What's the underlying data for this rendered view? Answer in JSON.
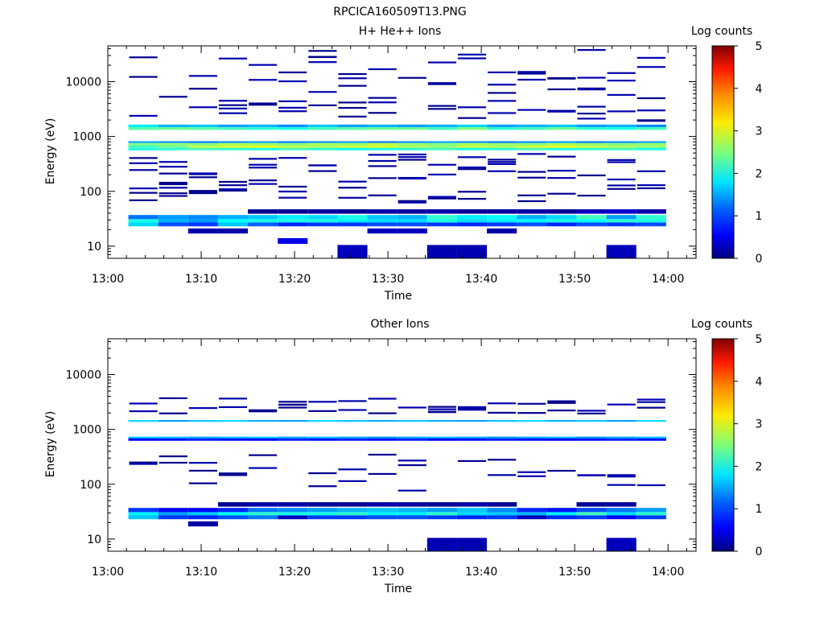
{
  "file_title": "RPCICA160509T13.PNG",
  "chart_data": [
    {
      "type": "heatmap",
      "title": "H+ He++ Ions",
      "xlabel": "Time",
      "ylabel": "Energy (eV)",
      "x_tick_labels": [
        "13:00",
        "13:10",
        "13:20",
        "13:30",
        "13:40",
        "13:50",
        "14:00"
      ],
      "x_range_minutes": [
        0,
        63
      ],
      "y_tick_labels": [
        "10",
        "100",
        "1000",
        "10000"
      ],
      "y_range": [
        6,
        45000
      ],
      "y_scale": "log",
      "colorbar_label": "Log counts",
      "colorbar_range": [
        0,
        5
      ],
      "colorbar_ticks": [
        "0",
        "1",
        "2",
        "3",
        "4",
        "5"
      ],
      "column_edges_minutes": [
        2.2,
        5.4,
        8.6,
        11.8,
        15.0,
        18.2,
        21.4,
        24.6,
        27.8,
        31.0,
        34.2,
        37.4,
        40.6,
        43.8,
        47.0,
        50.2,
        53.4,
        56.6,
        59.8
      ],
      "bands": [
        {
          "ev": [
            1320,
            1480
          ],
          "z": [
            2.3,
            2.4,
            2.3,
            2.2,
            2.1,
            2.0,
            2.2,
            2.3,
            2.4,
            2.4,
            2.2,
            2.5,
            2.1,
            2.2,
            2.4,
            2.1,
            2.0,
            2.2
          ]
        },
        {
          "ev": [
            1480,
            1650
          ],
          "z": [
            1.8,
            1.5,
            1.6,
            1.4,
            1.5,
            1.3,
            1.6,
            1.4,
            1.5,
            1.4,
            1.5,
            1.7,
            1.4,
            1.5,
            1.6,
            1.4,
            1.5,
            1.3
          ]
        },
        {
          "ev": [
            760,
            820
          ],
          "z": [
            1.4,
            1.3,
            1.2,
            1.3,
            1.4,
            1.2,
            1.3,
            1.4,
            1.2,
            1.3,
            1.4,
            1.3,
            1.2,
            1.3,
            1.4,
            1.2,
            1.3,
            1.4
          ]
        },
        {
          "ev": [
            690,
            760
          ],
          "z": [
            2.5,
            2.6,
            2.5,
            2.7,
            2.6,
            2.5,
            2.7,
            2.6,
            2.8,
            2.6,
            2.5,
            2.7,
            2.6,
            2.5,
            2.7,
            2.6,
            2.5,
            2.6
          ]
        },
        {
          "ev": [
            620,
            690
          ],
          "z": [
            2.2,
            2.4,
            2.8,
            2.9,
            3.0,
            2.8,
            2.7,
            2.9,
            2.9,
            2.7,
            2.6,
            2.8,
            2.7,
            2.9,
            3.0,
            2.8,
            2.7,
            2.6
          ]
        },
        {
          "ev": [
            560,
            620
          ],
          "z": [
            2.0,
            2.1,
            2.2,
            2.1,
            2.0,
            2.2,
            2.1,
            1.9,
            2.0,
            2.1,
            2.2,
            2.0,
            2.1,
            2.2,
            2.0,
            2.1,
            2.2,
            2.0
          ]
        },
        {
          "ev": [
            31,
            37
          ],
          "z": [
            1.2,
            1.4,
            1.3,
            1.5,
            1.6,
            1.8,
            1.7,
            2.0,
            1.6,
            1.5,
            2.1,
            1.8,
            1.9,
            1.5,
            1.7,
            2.2,
            1.4,
            2.1
          ]
        },
        {
          "ev": [
            27,
            31
          ],
          "z": [
            2.0,
            1.5,
            1.4,
            1.9,
            2.0,
            2.0,
            2.0,
            1.8,
            1.7,
            1.7,
            2.0,
            1.7,
            1.8,
            1.9,
            2.0,
            1.9,
            2.1,
            2.0
          ]
        },
        {
          "ev": [
            23,
            27
          ],
          "z": [
            1.7,
            1.0,
            0.9,
            1.6,
            1.1,
            0.8,
            0.9,
            0.9,
            1.0,
            1.0,
            0.9,
            0.8,
            0.9,
            1.0,
            0.8,
            1.0,
            0.9,
            1.0
          ]
        },
        {
          "ev": [
            39,
            47
          ],
          "z": [
            null,
            null,
            null,
            null,
            0.1,
            0.1,
            0.15,
            0.1,
            0.2,
            0.15,
            0.2,
            0.1,
            0.15,
            0.2,
            0.1,
            0.3,
            0.4,
            0.2
          ]
        },
        {
          "ev": [
            17,
            21
          ],
          "z": [
            null,
            null,
            0.2,
            0.2,
            null,
            null,
            null,
            null,
            0.3,
            0.3,
            null,
            null,
            0.2,
            null,
            null,
            null,
            null,
            null
          ]
        },
        {
          "ev": [
            11,
            14
          ],
          "z": [
            null,
            null,
            null,
            null,
            null,
            0.5,
            null,
            null,
            null,
            null,
            null,
            null,
            null,
            null,
            null,
            null,
            null,
            null
          ]
        },
        {
          "ev": [
            6,
            10.5
          ],
          "z": [
            null,
            null,
            null,
            null,
            null,
            null,
            null,
            0.3,
            null,
            null,
            0.25,
            0.25,
            null,
            null,
            null,
            null,
            0.3,
            null
          ]
        }
      ]
    },
    {
      "type": "heatmap",
      "title": "Other Ions",
      "xlabel": "Time",
      "ylabel": "Energy (eV)",
      "x_tick_labels": [
        "13:00",
        "13:10",
        "13:20",
        "13:30",
        "13:40",
        "13:50",
        "14:00"
      ],
      "x_range_minutes": [
        0,
        63
      ],
      "y_tick_labels": [
        "10",
        "100",
        "1000",
        "10000"
      ],
      "y_range": [
        6,
        45000
      ],
      "y_scale": "log",
      "colorbar_label": "Log counts",
      "colorbar_range": [
        0,
        5
      ],
      "colorbar_ticks": [
        "0",
        "1",
        "2",
        "3",
        "4",
        "5"
      ],
      "column_edges_minutes": [
        2.2,
        5.4,
        8.6,
        11.8,
        15.0,
        18.2,
        21.4,
        24.6,
        27.8,
        31.0,
        34.2,
        37.4,
        40.6,
        43.8,
        47.0,
        50.2,
        53.4,
        56.6,
        59.8
      ],
      "bands": [
        {
          "ev": [
            1380,
            1480
          ],
          "z": [
            1.7,
            1.4,
            1.6,
            1.7,
            1.5,
            1.4,
            1.7,
            1.6,
            1.5,
            1.6,
            1.5,
            1.4,
            1.6,
            1.7,
            1.5,
            1.6,
            1.4,
            1.7
          ]
        },
        {
          "ev": [
            690,
            740
          ],
          "z": [
            1.7,
            1.6,
            1.5,
            1.6,
            1.7,
            1.5,
            1.6,
            1.5,
            1.4,
            1.5,
            1.6,
            1.5,
            1.4,
            1.5,
            1.6,
            1.4,
            1.5,
            1.6
          ]
        },
        {
          "ev": [
            620,
            690
          ],
          "z": [
            0.6,
            0.7,
            0.8,
            0.7,
            0.6,
            0.8,
            0.7,
            0.8,
            0.7,
            0.8,
            0.6,
            0.7,
            0.8,
            0.7,
            0.6,
            0.7,
            0.8,
            0.7
          ]
        },
        {
          "ev": [
            31,
            37
          ],
          "z": [
            0.9,
            0.6,
            0.6,
            0.8,
            1.2,
            1.3,
            1.4,
            1.5,
            1.6,
            1.5,
            1.4,
            1.6,
            1.3,
            0.8,
            0.7,
            1.0,
            1.2,
            1.4
          ]
        },
        {
          "ev": [
            27,
            31
          ],
          "z": [
            1.8,
            1.4,
            1.6,
            1.9,
            2.1,
            2.0,
            2.0,
            2.1,
            1.8,
            1.8,
            2.1,
            1.7,
            1.6,
            1.5,
            1.8,
            2.2,
            1.7,
            2.1
          ]
        },
        {
          "ev": [
            23,
            27
          ],
          "z": [
            1.6,
            0.9,
            0.8,
            1.0,
            1.2,
            0.3,
            0.9,
            0.9,
            1.0,
            1.0,
            0.9,
            0.8,
            0.9,
            0.3,
            0.8,
            0.9,
            0.6,
            0.9
          ]
        },
        {
          "ev": [
            39,
            47
          ],
          "z": [
            null,
            null,
            null,
            0.1,
            0.2,
            0.2,
            0.1,
            0.1,
            0.2,
            0.15,
            0.1,
            0.2,
            0.1,
            null,
            null,
            0.1,
            0.15,
            null
          ]
        },
        {
          "ev": [
            17,
            21
          ],
          "z": [
            null,
            null,
            0.2,
            null,
            null,
            null,
            null,
            null,
            null,
            null,
            null,
            null,
            null,
            null,
            null,
            null,
            null,
            null
          ]
        },
        {
          "ev": [
            6,
            10.5
          ],
          "z": [
            null,
            null,
            null,
            null,
            null,
            null,
            null,
            null,
            null,
            null,
            0.25,
            0.25,
            null,
            null,
            null,
            null,
            0.3,
            null
          ]
        }
      ]
    }
  ]
}
